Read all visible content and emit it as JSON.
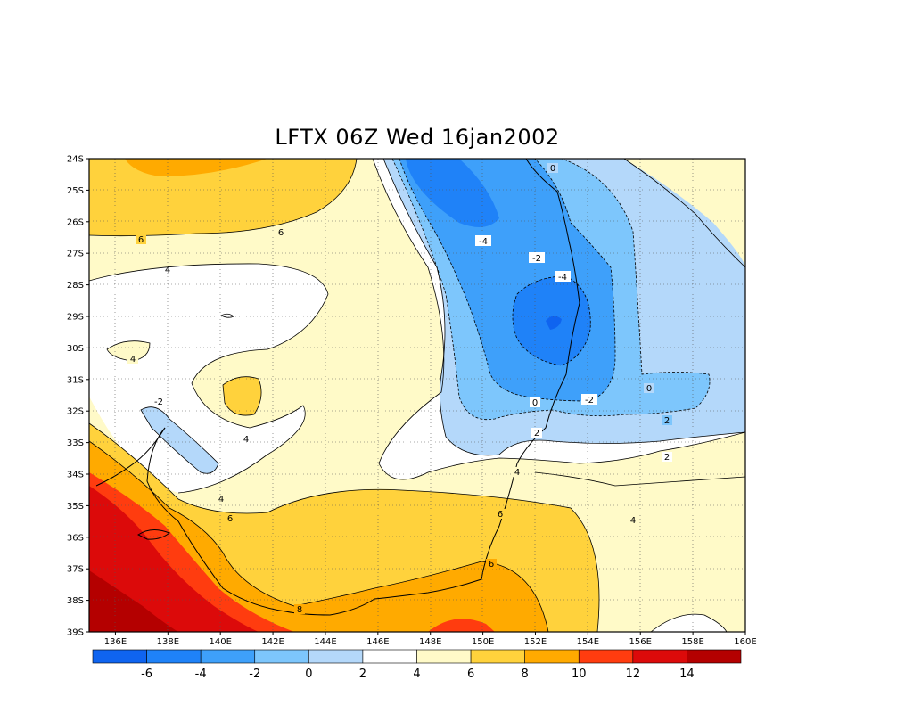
{
  "title": "LFTX 06Z Wed 16jan2002",
  "map": {
    "lon_range": [
      135,
      160
    ],
    "lat_range": [
      -39,
      -24
    ],
    "lat_ticks": [
      "24S",
      "25S",
      "26S",
      "27S",
      "28S",
      "29S",
      "30S",
      "31S",
      "32S",
      "33S",
      "34S",
      "35S",
      "36S",
      "37S",
      "38S",
      "39S"
    ],
    "lon_ticks": [
      "136E",
      "138E",
      "140E",
      "142E",
      "144E",
      "146E",
      "148E",
      "150E",
      "152E",
      "154E",
      "156E",
      "158E",
      "160E"
    ],
    "grid": "dotted",
    "contour_labels": [
      "6",
      "6",
      "4",
      "4",
      "-4",
      "-2",
      "-4",
      "0",
      "-2",
      "0",
      "-2",
      "0",
      "2",
      "2",
      "4",
      "4",
      "4",
      "6",
      "6",
      "2",
      "6",
      "8",
      "8",
      "4",
      "-2"
    ]
  },
  "colorbar": {
    "labels": [
      "-6",
      "-4",
      "-2",
      "0",
      "2",
      "4",
      "6",
      "8",
      "10",
      "12",
      "14"
    ],
    "colors": [
      "#0f64f0",
      "#1f82f8",
      "#3ea0fa",
      "#7dc6fc",
      "#b4d8fa",
      "#ffffff",
      "#fffac8",
      "#ffd23c",
      "#ffaa00",
      "#ff3c0f",
      "#dc0a0a",
      "#b40000"
    ]
  }
}
